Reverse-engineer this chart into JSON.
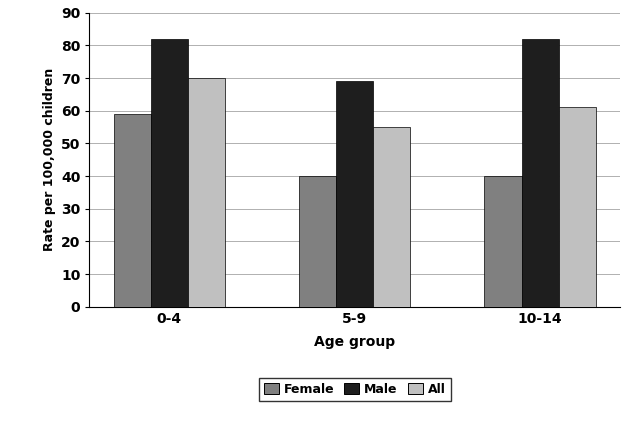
{
  "categories": [
    "0-4",
    "5-9",
    "10-14"
  ],
  "series": {
    "Female": [
      59,
      40,
      40
    ],
    "Male": [
      82,
      69,
      82
    ],
    "All": [
      70,
      55,
      61
    ]
  },
  "bar_colors": {
    "Female": "#808080",
    "Male": "#1e1e1e",
    "All": "#c0c0c0"
  },
  "ylabel": "Rate per 100,000 children",
  "xlabel": "Age group",
  "ylim": [
    0,
    90
  ],
  "yticks": [
    0,
    10,
    20,
    30,
    40,
    50,
    60,
    70,
    80,
    90
  ],
  "legend_labels": [
    "Female",
    "Male",
    "All"
  ],
  "bar_width": 0.2,
  "background_color": "#ffffff",
  "grid_color": "#b0b0b0"
}
